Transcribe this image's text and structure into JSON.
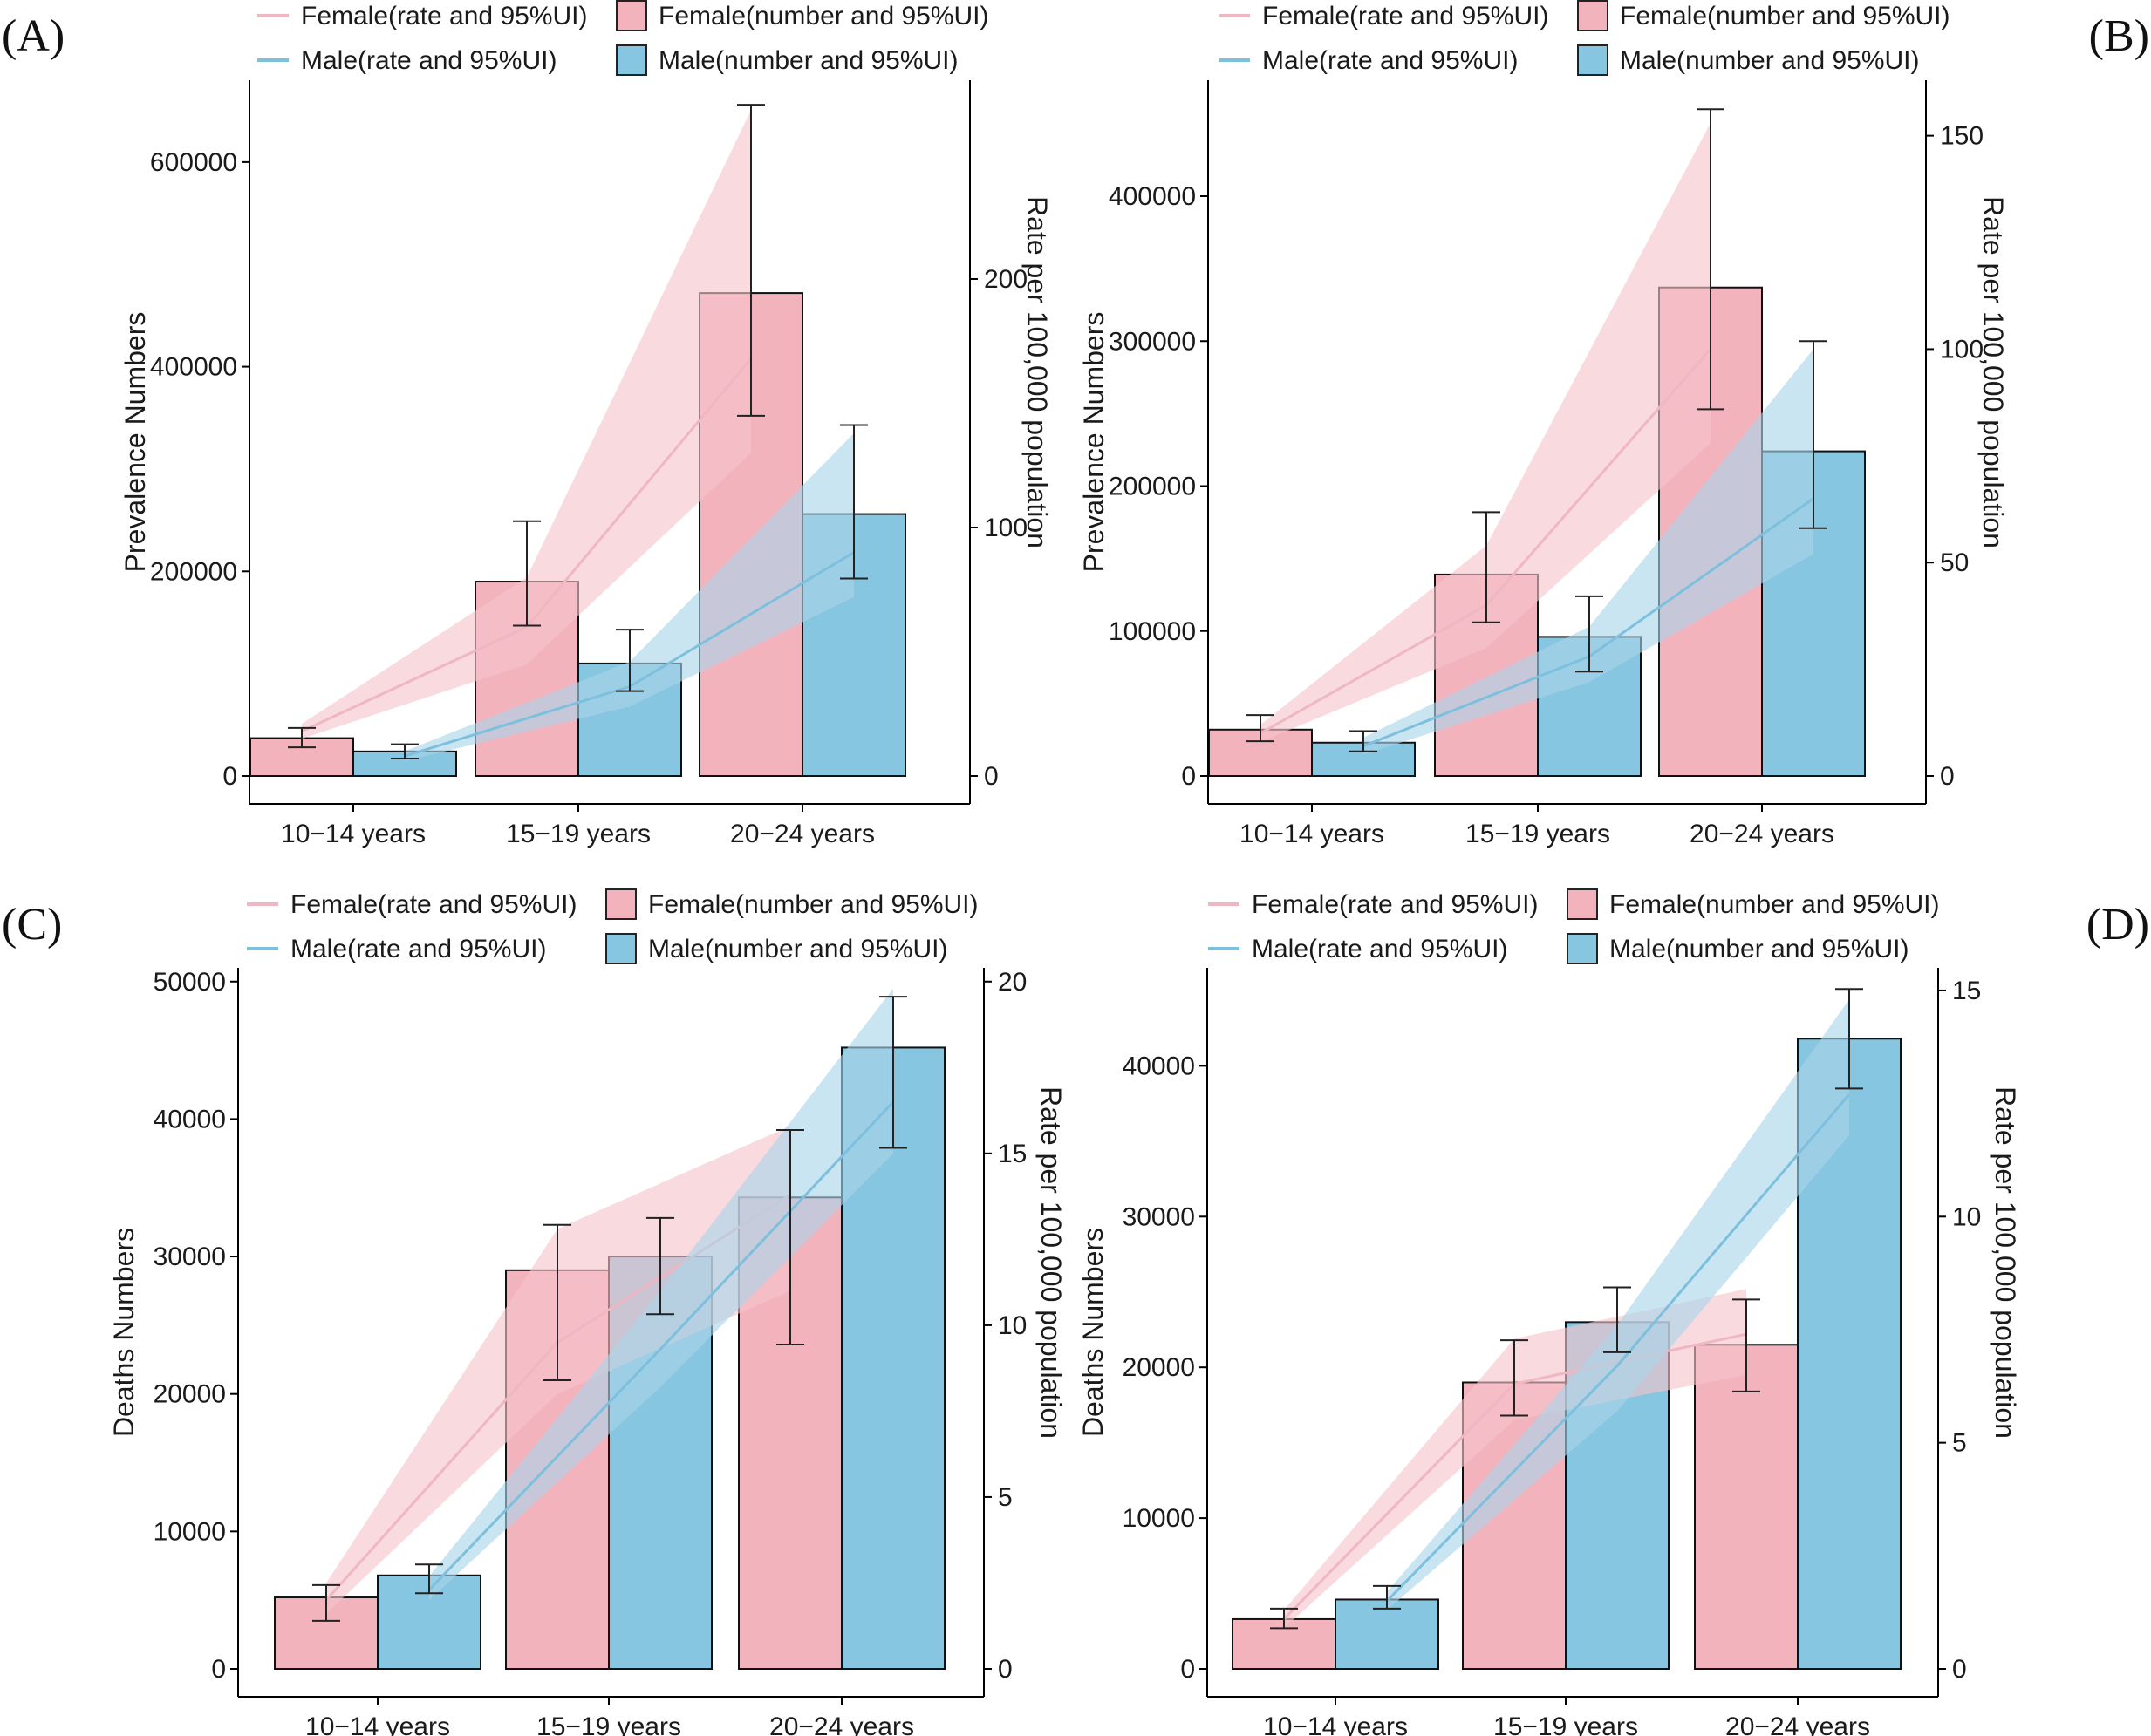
{
  "colors": {
    "female": "#f3b3bd",
    "male": "#87c6e0",
    "female_line": "#f0b6c1",
    "male_line": "#7dc0de",
    "female_band": "#f5c3cc",
    "male_band": "#a9d5ea",
    "axis": "#000000"
  },
  "legend": {
    "female_rate": "Female(rate and 95%UI)",
    "male_rate": "Male(rate and 95%UI)",
    "female_number": "Female(number and 95%UI)",
    "male_number": "Male(number and 95%UI)"
  },
  "chart_data": [
    {
      "id": "A",
      "panel_label": "(A)",
      "label_side": "left",
      "type": "bar",
      "categories": [
        "10−14 years",
        "15−19 years",
        "20−24 years"
      ],
      "ylabel": "Prevalence Numbers",
      "y2label": "Rate per 100,000 population",
      "ylim": [
        0,
        680000
      ],
      "yticks": [
        0,
        200000,
        400000,
        600000
      ],
      "y2lim": [
        0,
        280
      ],
      "y2ticks": [
        0,
        100,
        200
      ],
      "series": [
        {
          "name": "Female",
          "values": [
            37000,
            190000,
            472000
          ],
          "lower": [
            28000,
            147000,
            352000
          ],
          "upper": [
            47000,
            249000,
            656000
          ]
        },
        {
          "name": "Male",
          "values": [
            24000,
            110000,
            256000
          ],
          "lower": [
            17000,
            83000,
            193000
          ],
          "upper": [
            31000,
            143000,
            343000
          ]
        }
      ],
      "rates": [
        {
          "name": "Female",
          "values": [
            18,
            60,
            168
          ],
          "lower": [
            15,
            45,
            130
          ],
          "upper": [
            21,
            80,
            268
          ]
        },
        {
          "name": "Male",
          "values": [
            8,
            36,
            90
          ],
          "lower": [
            6,
            28,
            72
          ],
          "upper": [
            10,
            46,
            138
          ]
        }
      ]
    },
    {
      "id": "B",
      "panel_label": "(B)",
      "label_side": "right",
      "type": "bar",
      "categories": [
        "10−14 years",
        "15−19 years",
        "20−24 years"
      ],
      "ylabel": "Prevalence Numbers",
      "y2label": "Rate per 100,000 population",
      "ylim": [
        0,
        480000
      ],
      "yticks": [
        0,
        100000,
        200000,
        300000,
        400000
      ],
      "y2lim": [
        0,
        163
      ],
      "y2ticks": [
        0,
        50,
        100,
        150
      ],
      "series": [
        {
          "name": "Female",
          "values": [
            32000,
            139000,
            337000
          ],
          "lower": [
            24000,
            106000,
            253000
          ],
          "upper": [
            42000,
            182000,
            460000
          ]
        },
        {
          "name": "Male",
          "values": [
            23000,
            96000,
            224000
          ],
          "lower": [
            17000,
            72000,
            171000
          ],
          "upper": [
            31000,
            124000,
            300000
          ]
        }
      ],
      "rates": [
        {
          "name": "Female",
          "values": [
            10,
            40,
            100
          ],
          "lower": [
            8,
            30,
            78
          ],
          "upper": [
            12,
            54,
            153
          ]
        },
        {
          "name": "Male",
          "values": [
            7,
            28,
            65
          ],
          "lower": [
            5,
            22,
            52
          ],
          "upper": [
            9,
            35,
            100
          ]
        }
      ]
    },
    {
      "id": "C",
      "panel_label": "(C)",
      "label_side": "left",
      "type": "bar",
      "categories": [
        "10−14 years",
        "15−19 years",
        "20−24 years"
      ],
      "ylabel": "Deaths Numbers",
      "y2label": "Rate per 100,000 population",
      "ylim": [
        0,
        51000
      ],
      "yticks": [
        0,
        10000,
        20000,
        30000,
        40000,
        50000
      ],
      "y2lim": [
        0,
        20.4
      ],
      "y2ticks": [
        0,
        5,
        10,
        15,
        20
      ],
      "series": [
        {
          "name": "Female",
          "values": [
            5200,
            29000,
            34300
          ],
          "lower": [
            3500,
            21000,
            23600
          ],
          "upper": [
            6100,
            32300,
            39200
          ]
        },
        {
          "name": "Male",
          "values": [
            6800,
            30000,
            45200
          ],
          "lower": [
            5500,
            25800,
            37900
          ],
          "upper": [
            7600,
            32800,
            48900
          ]
        }
      ],
      "rates": [
        {
          "name": "Female",
          "values": [
            2.0,
            9.5,
            13.8
          ],
          "lower": [
            1.6,
            8.0,
            11.0
          ],
          "upper": [
            2.5,
            12.8,
            15.8
          ]
        },
        {
          "name": "Male",
          "values": [
            2.3,
            9.3,
            16.5
          ],
          "lower": [
            2.0,
            8.2,
            15.0
          ],
          "upper": [
            2.7,
            11.0,
            19.8
          ]
        }
      ]
    },
    {
      "id": "D",
      "panel_label": "(D)",
      "label_side": "right",
      "type": "bar",
      "categories": [
        "10−14 years",
        "15−19 years",
        "20−24 years"
      ],
      "ylabel": "Deaths Numbers",
      "y2label": "Rate per 100,000 population",
      "ylim": [
        0,
        46500
      ],
      "yticks": [
        0,
        10000,
        20000,
        30000,
        40000
      ],
      "y2lim": [
        0,
        15.5
      ],
      "y2ticks": [
        0,
        5,
        10,
        15
      ],
      "series": [
        {
          "name": "Female",
          "values": [
            3300,
            19000,
            21500
          ],
          "lower": [
            2700,
            16800,
            18400
          ],
          "upper": [
            4000,
            21800,
            24500
          ]
        },
        {
          "name": "Male",
          "values": [
            4600,
            23000,
            41800
          ],
          "lower": [
            4000,
            21000,
            38500
          ],
          "upper": [
            5500,
            25300,
            45100
          ]
        }
      ],
      "rates": [
        {
          "name": "Female",
          "values": [
            1.1,
            6.3,
            7.4
          ],
          "lower": [
            0.9,
            5.5,
            6.5
          ],
          "upper": [
            1.3,
            7.3,
            8.4
          ]
        },
        {
          "name": "Male",
          "values": [
            1.5,
            6.7,
            12.7
          ],
          "lower": [
            1.3,
            5.7,
            11.8
          ],
          "upper": [
            1.7,
            7.6,
            14.8
          ]
        }
      ]
    }
  ]
}
